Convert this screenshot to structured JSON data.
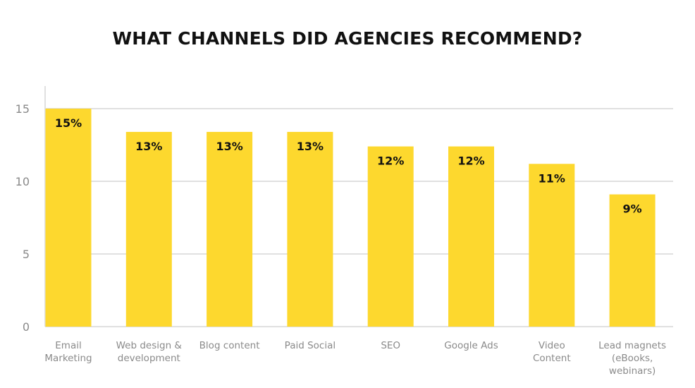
{
  "chart_data": {
    "type": "bar",
    "title": "WHAT CHANNELS DID AGENCIES RECOMMEND?",
    "xlabel": "",
    "ylabel": "",
    "ylim": [
      0,
      16
    ],
    "yticks": [
      0,
      5,
      10,
      15
    ],
    "grid": true,
    "legend": "none",
    "categories": [
      [
        "Email",
        "Marketing"
      ],
      [
        "Web design &",
        "development"
      ],
      [
        "Blog content"
      ],
      [
        "Paid Social"
      ],
      [
        "SEO"
      ],
      [
        "Google Ads"
      ],
      [
        "Video",
        "Content"
      ],
      [
        "Lead magnets",
        "(eBooks,",
        "webinars)"
      ]
    ],
    "values": [
      15.0,
      13.4,
      13.4,
      13.4,
      12.4,
      12.4,
      11.2,
      9.1
    ],
    "data_labels": [
      "15%",
      "13%",
      "13%",
      "13%",
      "12%",
      "12%",
      "11%",
      "9%"
    ],
    "colors": {
      "bar": "#FDD82E",
      "grid": "#e0e0e0",
      "text": "#111111",
      "axis_text": "#8a8a8a"
    }
  }
}
